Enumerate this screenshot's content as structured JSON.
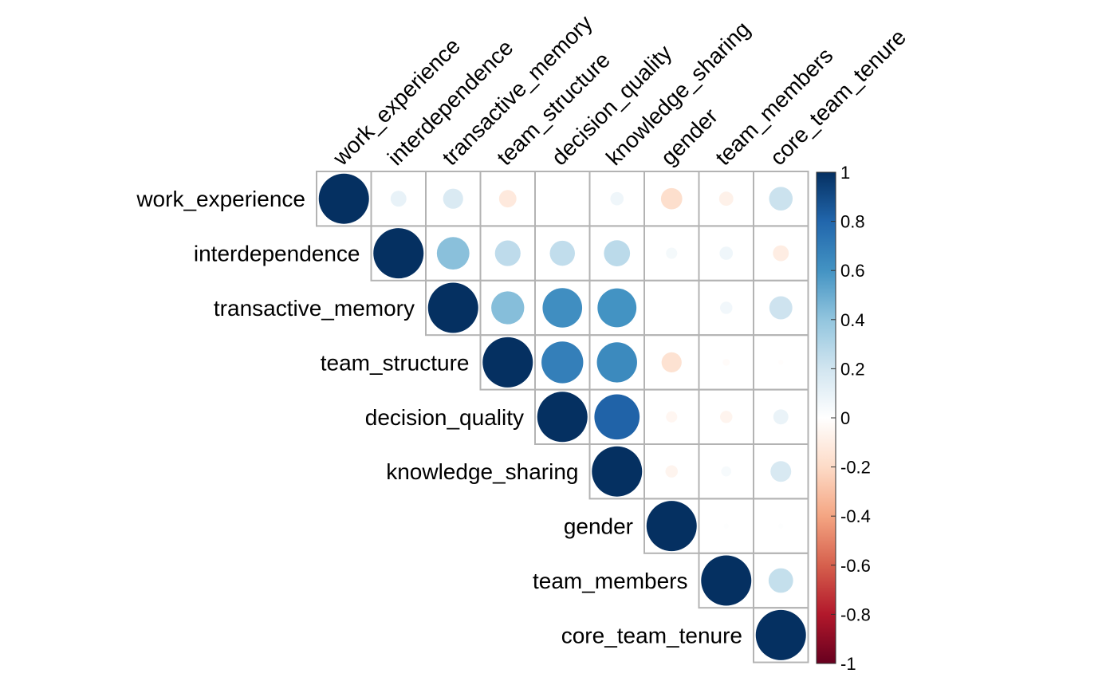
{
  "chart_data": {
    "type": "heatmap",
    "variant": "correlation-matrix-upper-circles",
    "variables": [
      "work_experience",
      "interdependence",
      "transactive_memory",
      "team_structure",
      "decision_quality",
      "knowledge_sharing",
      "gender",
      "team_members",
      "core_team_tenure"
    ],
    "matrix": [
      [
        1.0,
        0.1,
        0.16,
        -0.12,
        0.0,
        0.07,
        -0.18,
        -0.08,
        0.22
      ],
      [
        0.1,
        1.0,
        0.42,
        0.26,
        0.25,
        0.27,
        0.05,
        0.07,
        -0.1
      ],
      [
        0.16,
        0.42,
        1.0,
        0.43,
        0.62,
        0.6,
        0.0,
        0.06,
        0.21
      ],
      [
        -0.12,
        0.26,
        0.43,
        1.0,
        0.69,
        0.64,
        -0.16,
        -0.02,
        -0.01
      ],
      [
        0.0,
        0.25,
        0.62,
        0.69,
        1.0,
        0.81,
        -0.05,
        -0.06,
        0.09
      ],
      [
        0.07,
        0.27,
        0.6,
        0.64,
        0.81,
        1.0,
        -0.06,
        0.04,
        0.17
      ],
      [
        -0.18,
        0.05,
        0.0,
        -0.16,
        -0.05,
        -0.06,
        1.0,
        0.01,
        0.01
      ],
      [
        -0.08,
        0.07,
        0.06,
        -0.02,
        -0.06,
        0.04,
        0.01,
        1.0,
        0.24
      ],
      [
        0.22,
        -0.1,
        0.21,
        -0.01,
        0.09,
        0.17,
        0.01,
        0.24,
        1.0
      ]
    ],
    "display": "upper triangle incl. diagonal",
    "color_scale": {
      "min": -1,
      "max": 1,
      "ticks": [
        "1",
        "0.8",
        "0.6",
        "0.4",
        "0.2",
        "0",
        "-0.2",
        "-0.4",
        "-0.6",
        "-0.8",
        "-1"
      ],
      "colors": [
        "#67001F",
        "#B2182B",
        "#D6604D",
        "#F4A582",
        "#FDDBC7",
        "#FFFFFF",
        "#D1E5F0",
        "#92C5DE",
        "#4393C3",
        "#2166AC",
        "#053061"
      ]
    },
    "grid": true,
    "legend": "right"
  }
}
